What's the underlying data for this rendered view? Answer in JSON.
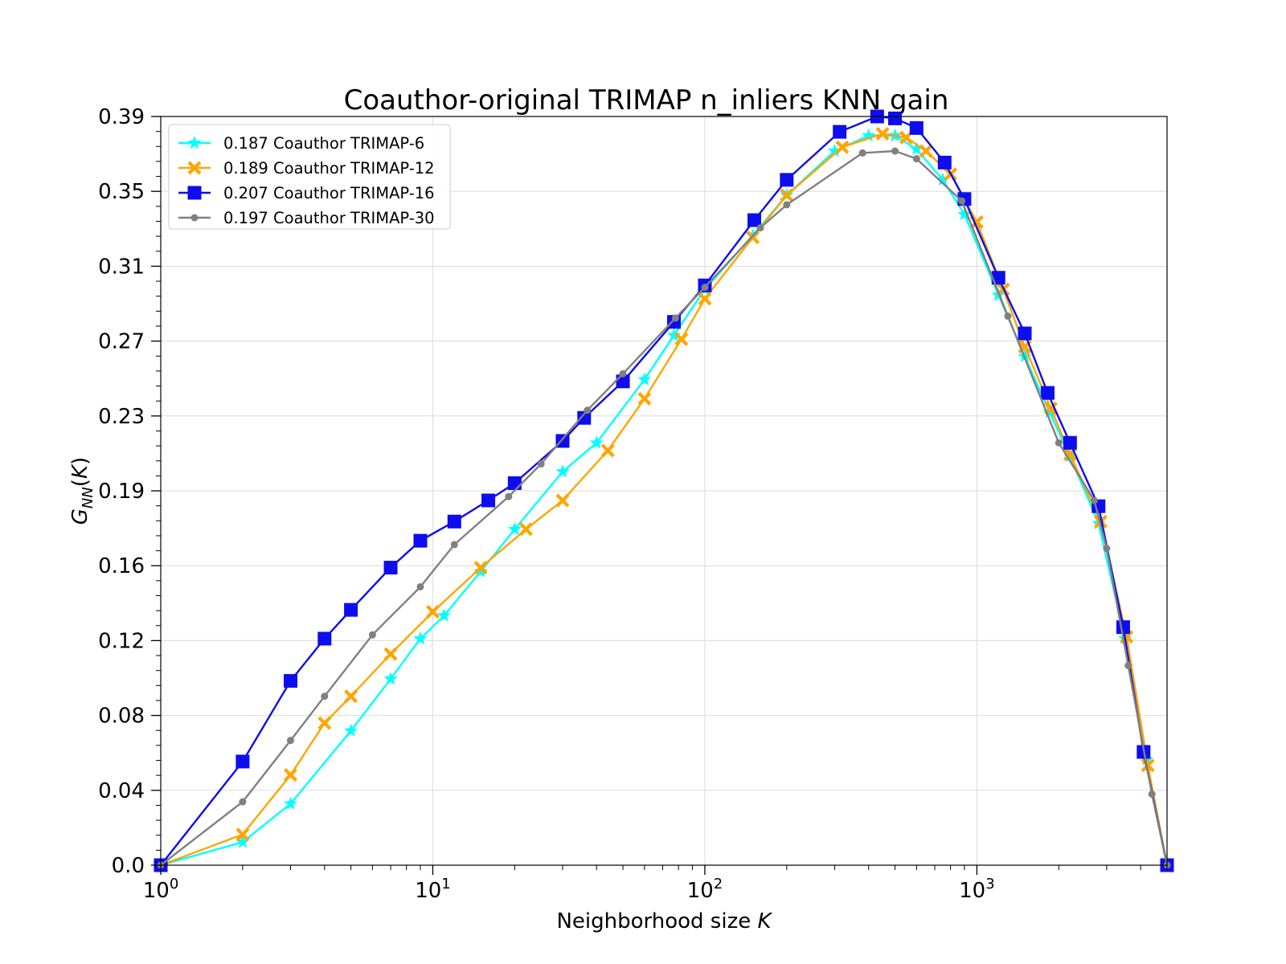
{
  "chart_data": {
    "type": "line",
    "title": "Coauthor-original TRIMAP n_inliers KNN gain",
    "xlabel": "Neighborhood size K",
    "ylabel": "G_NN(K)",
    "xscale": "log",
    "xlim": [
      1,
      5000
    ],
    "ylim": [
      0,
      0.39
    ],
    "grid": true,
    "legend_position": "upper-left",
    "x_tick_labels": [
      {
        "base": "10",
        "exp": "0",
        "value": 1
      },
      {
        "base": "10",
        "exp": "1",
        "value": 10
      },
      {
        "base": "10",
        "exp": "2",
        "value": 100
      },
      {
        "base": "10",
        "exp": "3",
        "value": 1000
      }
    ],
    "y_tick_labels": [
      {
        "label": "0.0",
        "value": 0.0
      },
      {
        "label": "0.04",
        "value": 0.039
      },
      {
        "label": "0.08",
        "value": 0.078
      },
      {
        "label": "0.12",
        "value": 0.117
      },
      {
        "label": "0.16",
        "value": 0.156
      },
      {
        "label": "0.19",
        "value": 0.195
      },
      {
        "label": "0.23",
        "value": 0.234
      },
      {
        "label": "0.27",
        "value": 0.273
      },
      {
        "label": "0.31",
        "value": 0.312
      },
      {
        "label": "0.35",
        "value": 0.351
      },
      {
        "label": "0.39",
        "value": 0.39
      }
    ],
    "series": [
      {
        "name": "0.187 Coauthor TRIMAP-6",
        "color": "#00ffff",
        "marker": "star",
        "x": [
          1,
          2,
          3,
          5,
          7,
          9,
          11,
          15,
          20,
          30,
          40,
          60,
          77,
          100,
          150,
          200,
          300,
          400,
          500,
          600,
          750,
          900,
          1200,
          1500,
          1850,
          2200,
          2800,
          3500,
          4200,
          5000
        ],
        "y": [
          0.0,
          0.012,
          0.032,
          0.07,
          0.097,
          0.118,
          0.13,
          0.153,
          0.175,
          0.205,
          0.22,
          0.253,
          0.276,
          0.3,
          0.328,
          0.349,
          0.372,
          0.38,
          0.38,
          0.373,
          0.357,
          0.339,
          0.297,
          0.265,
          0.236,
          0.213,
          0.178,
          0.118,
          0.055,
          0.0
        ]
      },
      {
        "name": "0.189 Coauthor TRIMAP-12",
        "color": "#ffa500",
        "marker": "x-filled",
        "x": [
          1,
          2,
          3,
          4,
          5,
          7,
          10,
          15,
          22,
          30,
          44,
          60,
          82,
          100,
          150,
          200,
          320,
          450,
          550,
          650,
          800,
          1000,
          1250,
          1500,
          1870,
          2200,
          2850,
          3550,
          4250,
          5000
        ],
        "y": [
          0.0,
          0.016,
          0.047,
          0.074,
          0.088,
          0.11,
          0.132,
          0.155,
          0.175,
          0.19,
          0.216,
          0.243,
          0.274,
          0.295,
          0.327,
          0.349,
          0.374,
          0.381,
          0.379,
          0.372,
          0.36,
          0.335,
          0.3,
          0.27,
          0.238,
          0.214,
          0.179,
          0.119,
          0.052,
          0.0
        ]
      },
      {
        "name": "0.207 Coauthor TRIMAP-16",
        "color": "#0d0df0",
        "marker": "square",
        "x": [
          1,
          2,
          3,
          4,
          5,
          7,
          9,
          12,
          16,
          20,
          30,
          36,
          50,
          77,
          100,
          152,
          200,
          313,
          430,
          500,
          600,
          761,
          900,
          1200,
          1500,
          1820,
          2200,
          2800,
          3450,
          4100,
          5000
        ],
        "y": [
          0.0,
          0.054,
          0.096,
          0.118,
          0.133,
          0.155,
          0.169,
          0.179,
          0.19,
          0.199,
          0.221,
          0.233,
          0.252,
          0.283,
          0.302,
          0.336,
          0.357,
          0.382,
          0.39,
          0.389,
          0.384,
          0.366,
          0.347,
          0.306,
          0.277,
          0.246,
          0.22,
          0.187,
          0.124,
          0.059,
          0.0
        ]
      },
      {
        "name": "0.197 Coauthor TRIMAP-30",
        "color": "#808080",
        "marker": "circle",
        "x": [
          1,
          2,
          3,
          4,
          6,
          9,
          12,
          19,
          25,
          37,
          50,
          78,
          100,
          160,
          200,
          380,
          500,
          600,
          880,
          1300,
          2000,
          2700,
          3000,
          3600,
          4400,
          5000
        ],
        "y": [
          0.0,
          0.033,
          0.065,
          0.088,
          0.12,
          0.145,
          0.167,
          0.192,
          0.209,
          0.237,
          0.256,
          0.285,
          0.301,
          0.332,
          0.344,
          0.371,
          0.372,
          0.368,
          0.346,
          0.286,
          0.22,
          0.19,
          0.165,
          0.104,
          0.037,
          0.0
        ]
      }
    ]
  }
}
